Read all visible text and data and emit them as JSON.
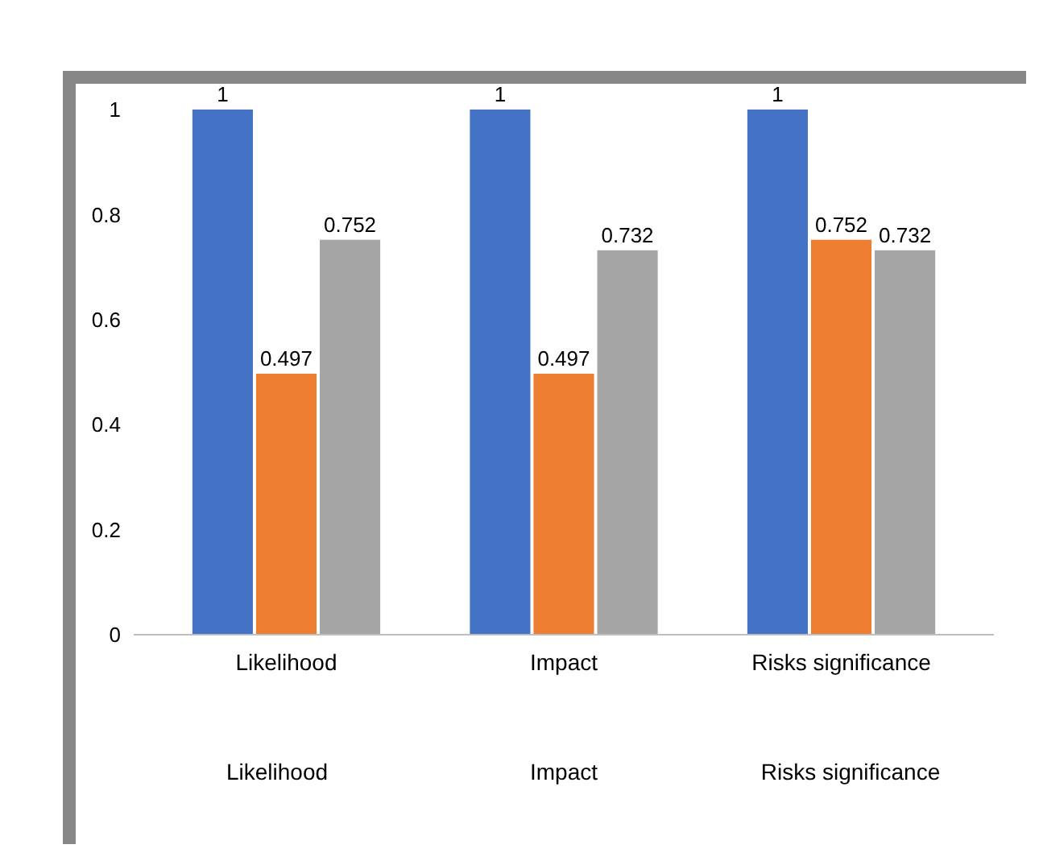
{
  "chart_data": {
    "type": "bar",
    "categories": [
      "Likelihood",
      "Impact",
      "Risks significance"
    ],
    "series": [
      {
        "color": "#4472c4",
        "values": [
          1,
          1,
          1
        ]
      },
      {
        "color": "#ed7d31",
        "values": [
          0.497,
          0.497,
          0.752
        ]
      },
      {
        "color": "#a5a5a5",
        "values": [
          0.752,
          0.732,
          0.732
        ]
      }
    ],
    "ylim": [
      0,
      1
    ],
    "yticks": [
      0,
      {
        "value": 0.2,
        "label": "0.2"
      },
      {
        "value": 0.4,
        "label": "0.4"
      },
      {
        "value": 0.6,
        "label": "0.6"
      },
      {
        "value": 0.8,
        "label": "0.8"
      },
      1
    ],
    "data_labels": true,
    "grid": false,
    "annotations": [
      "Likelihood",
      "Impact",
      "Risks significance"
    ]
  }
}
